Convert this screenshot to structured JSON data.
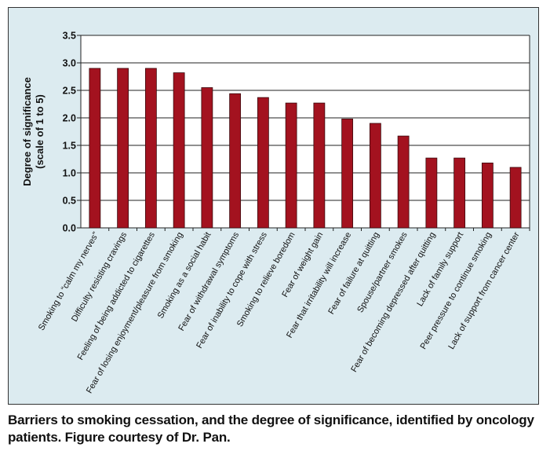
{
  "chart_data": {
    "type": "bar",
    "categories": [
      "Smoking to “calm my nerves”",
      "Difficulty resisting cravings",
      "Feeling of being addicted to cigarettes",
      "Fear of losing enjoyment/pleasure from smoking",
      "Smoking as a social habit",
      "Fear of withdrawal symptoms",
      "Fear of inability to cope with stress",
      "Smoking to relieve boredom",
      "Fear of weight gain",
      "Fear that irritability will increase",
      "Fear of failure at quitting",
      "Spouse/partner smokes",
      "Fear of becoming depressed after quitting",
      "Lack of family support",
      "Peer pressure to continue smoking",
      "Lack of support from cancer center"
    ],
    "values": [
      2.9,
      2.9,
      2.9,
      2.82,
      2.55,
      2.44,
      2.37,
      2.27,
      2.27,
      1.98,
      1.9,
      1.67,
      1.27,
      1.27,
      1.18,
      1.1
    ],
    "ylabel_line1": "Degree of significance",
    "ylabel_line2": "(scale of 1 to 5)",
    "ylim": [
      0,
      3.5
    ],
    "yticks": [
      "0.0",
      "0.5",
      "1.0",
      "1.5",
      "2.0",
      "2.5",
      "3.0",
      "3.5"
    ],
    "grid": true,
    "bar_color": "#a3121f",
    "background_color": "#dcebf0"
  },
  "caption": {
    "line1": "Barriers to smoking cessation, and the degree of significance, identified by oncology",
    "line2": "patients. Figure courtesy of Dr. Pan."
  }
}
